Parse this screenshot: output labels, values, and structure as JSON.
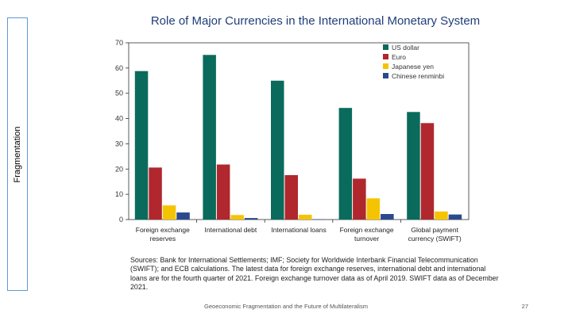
{
  "side_label": "Fragmentation",
  "footer": "Geoeconomic Fragmentation and the Future of Multilateralism",
  "page_number": "27",
  "sources": "Sources: Bank for International Settlements; IMF; Society for Worldwide Interbank Financial Telecommunication (SWIFT); and ECB calculations. The latest data for foreign exchange reserves, international debt and international loans are for the fourth quarter of 2021. Foreign exchange turnover data as of April 2019. SWIFT data as of December 2021.",
  "chart_data": {
    "type": "bar",
    "title": "Role of Major Currencies in the International Monetary System",
    "categories": [
      [
        "Foreign exchange",
        "reserves"
      ],
      [
        "International debt"
      ],
      [
        "International loans"
      ],
      [
        "Foreign exchange",
        "turnover"
      ],
      [
        "Global payment",
        "currency (SWIFT)"
      ]
    ],
    "series": [
      {
        "name": "US dollar",
        "color": "#0a6b5c",
        "values": [
          58.8,
          65.2,
          55.0,
          44.2,
          42.6
        ]
      },
      {
        "name": "Euro",
        "color": "#b0272d",
        "values": [
          20.6,
          21.8,
          17.6,
          16.2,
          38.2
        ]
      },
      {
        "name": "Japanese yen",
        "color": "#f5c400",
        "values": [
          5.6,
          1.8,
          1.9,
          8.4,
          3.2
        ]
      },
      {
        "name": "Chinese renminbi",
        "color": "#2b4a8c",
        "values": [
          2.8,
          0.6,
          0.1,
          2.2,
          2.0
        ]
      }
    ],
    "ylim": [
      0,
      70
    ],
    "yticks": [
      "0",
      "10",
      "20",
      "30",
      "40",
      "50",
      "60",
      "70"
    ],
    "legend_position": "top-right",
    "grid": false
  }
}
